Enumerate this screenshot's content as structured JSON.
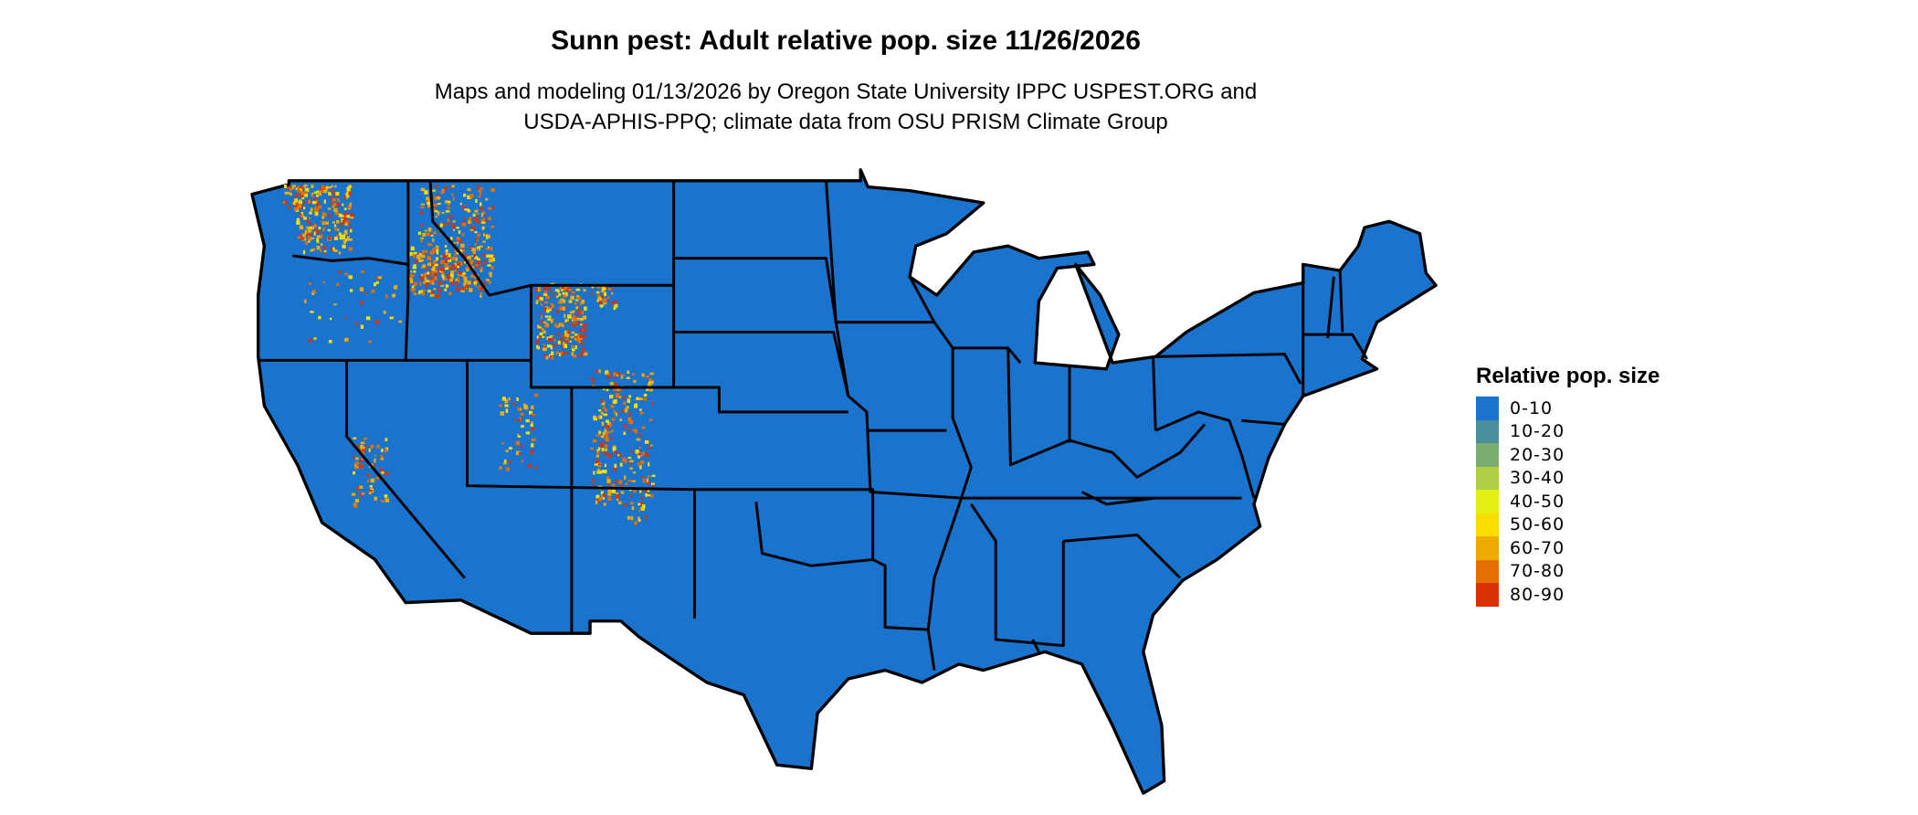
{
  "title": "Sunn pest: Adult relative pop. size 11/26/2026",
  "subtitle_line1": "Maps and modeling 01/13/2026 by Oregon State University IPPC USPEST.ORG and",
  "subtitle_line2": "USDA-APHIS-PPQ; climate data from OSU PRISM Climate Group",
  "map": {
    "region": "contiguous-united-states",
    "base_fill": "#1a73cc",
    "border_color": "#000000",
    "hotspot_regions": [
      "Washington",
      "Idaho",
      "Montana",
      "Wyoming",
      "Utah",
      "Colorado",
      "Oregon",
      "Nevada",
      "California",
      "New Mexico"
    ]
  },
  "legend": {
    "title": "Relative pop. size",
    "items": [
      {
        "label": "0-10",
        "color": "#1a73cc"
      },
      {
        "label": "10-20",
        "color": "#4a909c"
      },
      {
        "label": "20-30",
        "color": "#7bad72"
      },
      {
        "label": "30-40",
        "color": "#b1cf44"
      },
      {
        "label": "40-50",
        "color": "#e4ef14"
      },
      {
        "label": "50-60",
        "color": "#f7dd00"
      },
      {
        "label": "60-70",
        "color": "#eeab00"
      },
      {
        "label": "70-80",
        "color": "#e46f00"
      },
      {
        "label": "80-90",
        "color": "#da3200"
      }
    ]
  }
}
